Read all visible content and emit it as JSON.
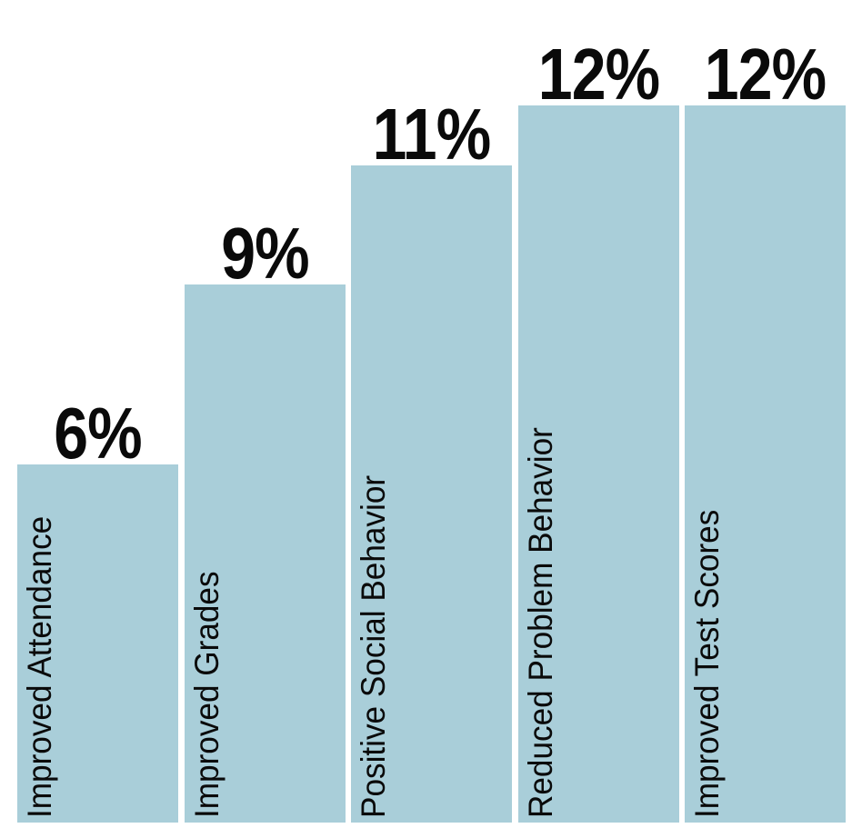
{
  "chart_data": {
    "type": "bar",
    "categories": [
      "Improved Attendance",
      "Improved Grades",
      "Positive Social Behavior",
      "Reduced Problem Behavior",
      "Improved Test Scores"
    ],
    "values": [
      6,
      9,
      11,
      12,
      12
    ],
    "value_labels": [
      "6%",
      "9%",
      "11%",
      "12%",
      "12%"
    ],
    "unit": "percent",
    "title": "",
    "xlabel": "",
    "ylabel": "",
    "ylim": [
      0,
      12
    ],
    "grid": false,
    "legend": false,
    "axes_visible": false,
    "bar_color": "#A9CED9",
    "text_color": "#0a0a0a",
    "background_color": "#ffffff",
    "value_label_position": "above-bar",
    "category_label_position": "inside-bar-rotated-bottom-to-top"
  }
}
